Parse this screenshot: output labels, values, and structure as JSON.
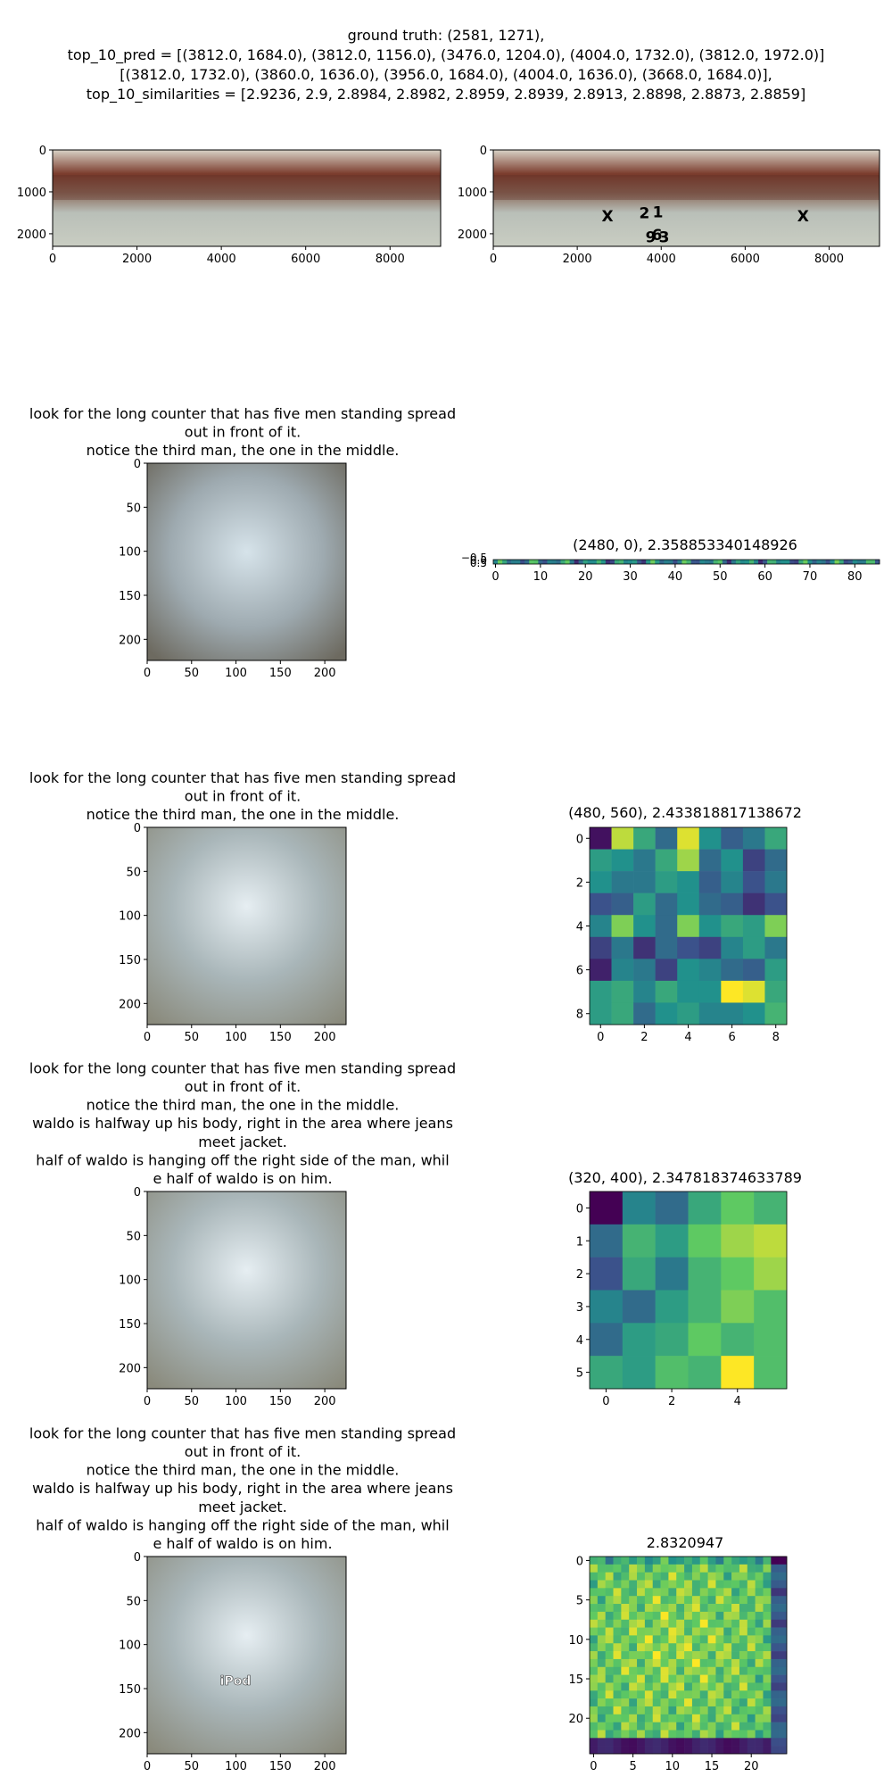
{
  "header": {
    "lines": [
      "ground truth: (2581, 1271),",
      "top_10_pred = [(3812.0, 1684.0), (3812.0, 1156.0), (3476.0, 1204.0), (4004.0, 1732.0), (3812.0, 1972.0)]",
      "[(3812.0, 1732.0), (3860.0, 1636.0), (3956.0, 1684.0), (4004.0, 1636.0), (3668.0, 1684.0)],",
      "top_10_similarities = [2.9236, 2.9, 2.8984, 2.8982, 2.8959, 2.8939, 2.8913, 2.8898, 2.8873, 2.8859]"
    ]
  },
  "panels": {
    "pano_left": {
      "xticks": [
        "0",
        "2000",
        "4000",
        "6000",
        "8000"
      ],
      "yticks": [
        "0",
        "1000",
        "2000"
      ]
    },
    "pano_right": {
      "xticks": [
        "0",
        "2000",
        "4000",
        "6000",
        "8000"
      ],
      "yticks": [
        "0",
        "1000",
        "2000"
      ],
      "markers": [
        "X",
        "X",
        "2",
        "1",
        "9",
        "6",
        "3"
      ]
    },
    "row2": {
      "title_lines": [
        "look for the long counter that has five men standing spread",
        "out in front of it.",
        "notice the third man, the one in the middle."
      ],
      "ticks": [
        "0",
        "50",
        "100",
        "150",
        "200"
      ],
      "heat_title": "(2480, 0), 2.358853340148926",
      "heat_xticks": [
        "0",
        "10",
        "20",
        "30",
        "40",
        "50",
        "60",
        "70",
        "80"
      ],
      "heat_yticks": [
        "−0.5",
        "0.0",
        "0.5"
      ]
    },
    "row3": {
      "title_lines": [
        "look for the long counter that has five men standing spread",
        "out in front of it.",
        "notice the third man, the one in the middle."
      ],
      "ticks": [
        "0",
        "50",
        "100",
        "150",
        "200"
      ],
      "heat_title": "(480, 560), 2.433818817138672",
      "heat_ticks": [
        "0",
        "2",
        "4",
        "6",
        "8"
      ]
    },
    "row4": {
      "title_lines": [
        "look for the long counter that has five men standing spread",
        "out in front of it.",
        "notice the third man, the one in the middle.",
        "waldo is halfway up his body, right in the area where jeans",
        "meet jacket.",
        "half of waldo is hanging off the right side of the man, whil",
        "e half of waldo is on him."
      ],
      "ticks": [
        "0",
        "50",
        "100",
        "150",
        "200"
      ],
      "heat_title": "(320, 400), 2.347818374633789",
      "heat_xticks": [
        "0",
        "2",
        "4"
      ],
      "heat_yticks": [
        "0",
        "1",
        "2",
        "3",
        "4",
        "5"
      ]
    },
    "row5": {
      "title_lines": [
        "look for the long counter that has five men standing spread",
        "out in front of it.",
        "notice the third man, the one in the middle.",
        "waldo is halfway up his body, right in the area where jeans",
        "meet jacket.",
        "half of waldo is hanging off the right side of the man, whil",
        "e half of waldo is on him."
      ],
      "ticks": [
        "0",
        "50",
        "100",
        "150",
        "200"
      ],
      "overlay_label": "iPod",
      "heat_title": "2.8320947",
      "heat_ticks": [
        "0",
        "5",
        "10",
        "15",
        "20"
      ]
    }
  },
  "chart_data": [
    {
      "type": "scatter",
      "x": [
        2581
      ],
      "y": [
        1271
      ],
      "xlim": [
        0,
        9200
      ],
      "ylim": [
        2300,
        0
      ],
      "name": "ground truth"
    },
    {
      "type": "scatter",
      "x": [
        3812,
        3812,
        3476,
        4004,
        3812,
        3812,
        3860,
        3956,
        4004,
        3668
      ],
      "y": [
        1684,
        1156,
        1204,
        1732,
        1972,
        1732,
        1636,
        1684,
        1636,
        1684
      ],
      "values": [
        2.9236,
        2.9,
        2.8984,
        2.8982,
        2.8959,
        2.8939,
        2.8913,
        2.8898,
        2.8873,
        2.8859
      ],
      "xlim": [
        0,
        9200
      ],
      "ylim": [
        2300,
        0
      ]
    },
    {
      "type": "heatmap",
      "rows": 1,
      "cols": 86,
      "xlim": [
        0,
        85
      ]
    },
    {
      "type": "heatmap",
      "rows": 9,
      "cols": 9,
      "values": [
        [
          0.05,
          0.9,
          0.6,
          0.35,
          0.95,
          0.5,
          0.3,
          0.4,
          0.6
        ],
        [
          0.55,
          0.5,
          0.4,
          0.6,
          0.85,
          0.35,
          0.5,
          0.2,
          0.35
        ],
        [
          0.5,
          0.4,
          0.4,
          0.55,
          0.5,
          0.3,
          0.45,
          0.25,
          0.4
        ],
        [
          0.25,
          0.3,
          0.55,
          0.35,
          0.5,
          0.35,
          0.3,
          0.15,
          0.25
        ],
        [
          0.45,
          0.8,
          0.5,
          0.35,
          0.8,
          0.5,
          0.6,
          0.55,
          0.8
        ],
        [
          0.2,
          0.4,
          0.15,
          0.35,
          0.25,
          0.2,
          0.45,
          0.55,
          0.4
        ],
        [
          0.1,
          0.45,
          0.4,
          0.2,
          0.5,
          0.45,
          0.35,
          0.3,
          0.55
        ],
        [
          0.55,
          0.6,
          0.45,
          0.6,
          0.5,
          0.5,
          1.0,
          0.95,
          0.6
        ],
        [
          0.55,
          0.6,
          0.35,
          0.5,
          0.55,
          0.45,
          0.45,
          0.5,
          0.65
        ]
      ]
    },
    {
      "type": "heatmap",
      "rows": 6,
      "cols": 6,
      "values": [
        [
          0.0,
          0.45,
          0.35,
          0.6,
          0.75,
          0.65
        ],
        [
          0.35,
          0.65,
          0.55,
          0.75,
          0.85,
          0.9
        ],
        [
          0.25,
          0.6,
          0.4,
          0.65,
          0.75,
          0.85
        ],
        [
          0.45,
          0.35,
          0.55,
          0.65,
          0.8,
          0.7
        ],
        [
          0.35,
          0.55,
          0.6,
          0.75,
          0.65,
          0.7
        ],
        [
          0.6,
          0.55,
          0.7,
          0.65,
          1.0,
          0.7
        ]
      ]
    },
    {
      "type": "heatmap",
      "rows": 25,
      "cols": 25,
      "xlim": [
        -0.5,
        24.5
      ],
      "ylim": [
        24.5,
        -0.5
      ]
    }
  ]
}
